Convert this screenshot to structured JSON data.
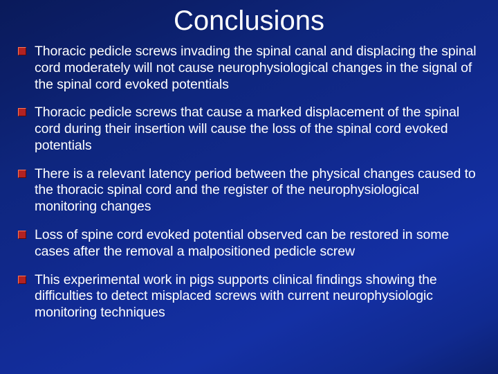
{
  "slide": {
    "title": "Conclusions",
    "background_gradient": [
      "#0a1a5a",
      "#122c98",
      "#0c2070"
    ],
    "title_color": "#ffffff",
    "title_fontsize": 40,
    "body_color": "#ffffff",
    "body_fontsize": 19.5,
    "bullet_color": "#b22222",
    "bullet_highlight": "#ff7755",
    "bullet_shadow": "#5a0808",
    "bullets": [
      "Thoracic pedicle screws invading the spinal canal and displacing the spinal cord moderately will not cause neurophysiological changes in the signal of the spinal cord evoked potentials",
      "Thoracic pedicle screws that cause a marked displacement of the spinal cord during their insertion will cause the loss of the spinal cord evoked potentials",
      "There is a relevant latency period between the physical changes caused to the thoracic spinal cord and the register of the neurophysiological monitoring changes",
      "Loss of spine cord evoked potential observed can be restored in some cases after the removal a malpositioned pedicle screw",
      "This experimental work in pigs supports clinical findings showing the difficulties to detect misplaced screws with current neurophysiologic monitoring techniques"
    ]
  }
}
